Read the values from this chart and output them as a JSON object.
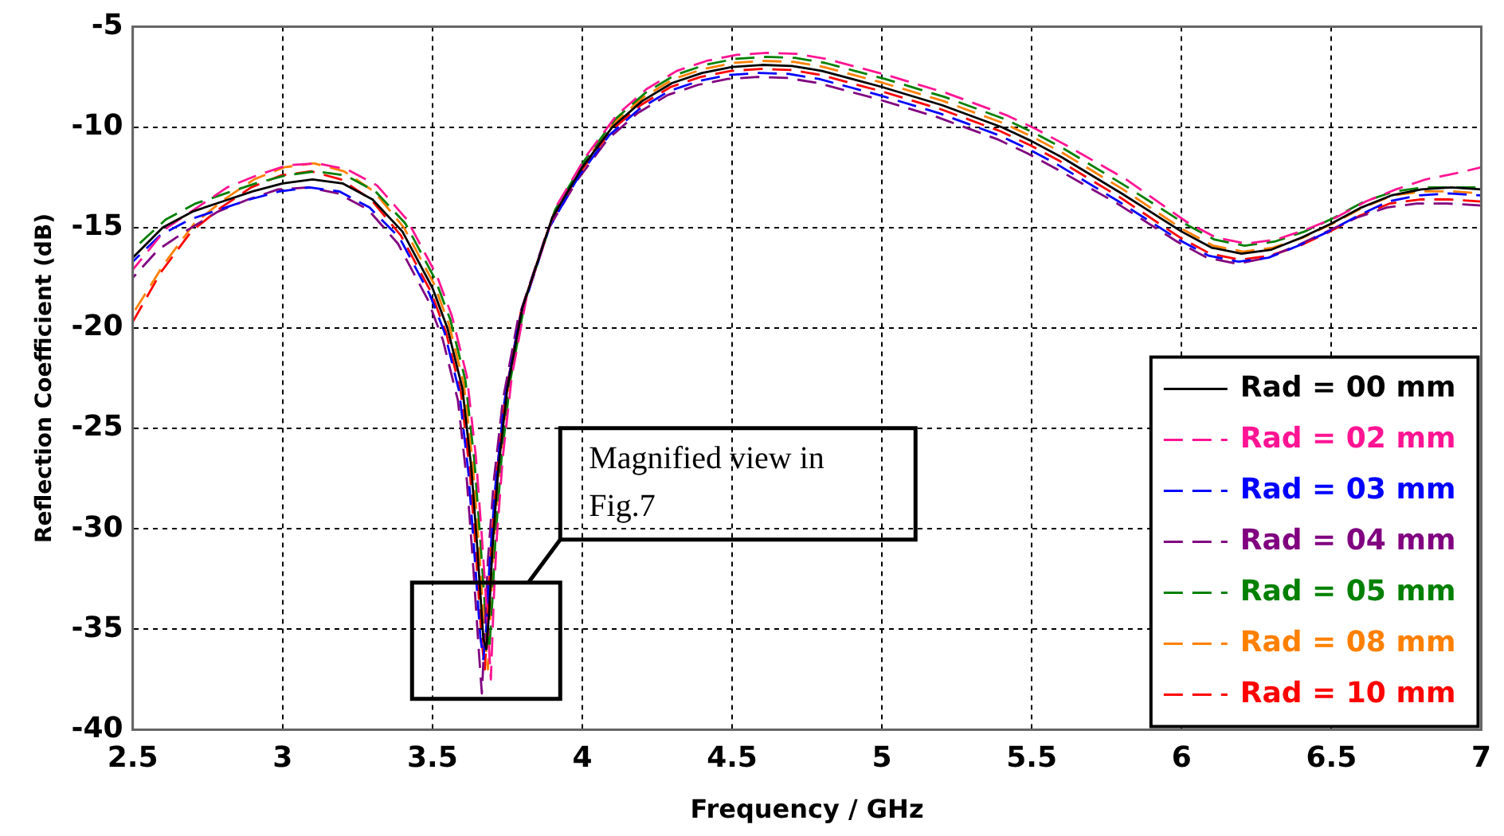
{
  "chart_data": {
    "type": "line",
    "xlabel": "Frequency / GHz",
    "ylabel": "Reflection Coefficient (dB)",
    "series": [
      {
        "name": "Rad = 00 mm",
        "color": "#000000",
        "line_style": "solid",
        "x": [
          2.5,
          2.6,
          2.7,
          2.8,
          2.9,
          3.0,
          3.1,
          3.2,
          3.3,
          3.4,
          3.5,
          3.55,
          3.6,
          3.63,
          3.65,
          3.67,
          3.68,
          3.69,
          3.7,
          3.72,
          3.75,
          3.8,
          3.9,
          4.0,
          4.1,
          4.2,
          4.3,
          4.4,
          4.5,
          4.6,
          4.7,
          4.8,
          4.9,
          5.0,
          5.2,
          5.4,
          5.5,
          5.6,
          5.8,
          6.0,
          6.1,
          6.2,
          6.3,
          6.4,
          6.5,
          6.6,
          6.7,
          6.8,
          6.9,
          7.0
        ],
        "values": [
          -16.5,
          -15,
          -14.2,
          -13.7,
          -13.2,
          -12.8,
          -12.6,
          -12.8,
          -13.6,
          -15.2,
          -18,
          -20,
          -23,
          -27,
          -31,
          -35.5,
          -36,
          -34,
          -31,
          -27,
          -23,
          -19,
          -14.5,
          -12,
          -10,
          -8.7,
          -7.8,
          -7.3,
          -7,
          -6.9,
          -6.95,
          -7.2,
          -7.6,
          -8,
          -8.9,
          -10,
          -10.7,
          -11.5,
          -13.3,
          -15.2,
          -16,
          -16.3,
          -16.1,
          -15.5,
          -14.8,
          -14,
          -13.4,
          -13.1,
          -13,
          -13.1
        ]
      },
      {
        "name": "Rad = 02 mm",
        "color": "#ff1493",
        "line_style": "dashed",
        "x": [
          2.5,
          2.615,
          2.715,
          2.815,
          2.915,
          3.015,
          3.115,
          3.215,
          3.315,
          3.415,
          3.515,
          3.565,
          3.615,
          3.645,
          3.665,
          3.685,
          3.695,
          3.705,
          3.715,
          3.735,
          3.765,
          3.815,
          3.915,
          4.015,
          4.115,
          4.215,
          4.315,
          4.415,
          4.515,
          4.615,
          4.715,
          4.815,
          4.915,
          5.015,
          5.215,
          5.415,
          5.515,
          5.615,
          5.815,
          6.015,
          6.115,
          6.215,
          6.315,
          6.415,
          6.515,
          6.615,
          6.715,
          6.815,
          6.915,
          7.0
        ],
        "values": [
          -17.1,
          -15,
          -14,
          -13,
          -12.4,
          -11.9,
          -11.8,
          -12.1,
          -12.9,
          -14.6,
          -17.4,
          -19.4,
          -22.4,
          -26.4,
          -30.4,
          -34.9,
          -37.5,
          -33.4,
          -30.4,
          -26.4,
          -22.4,
          -18.4,
          -13.9,
          -11.4,
          -9.4,
          -8.1,
          -7.2,
          -6.7,
          -6.4,
          -6.3,
          -6.35,
          -6.6,
          -7,
          -7.4,
          -8.3,
          -9.4,
          -10.1,
          -10.9,
          -12.6,
          -14.7,
          -15.5,
          -15.8,
          -15.6,
          -15.1,
          -14.5,
          -13.7,
          -13.1,
          -12.6,
          -12.3,
          -12
        ]
      },
      {
        "name": "Rad = 03 mm",
        "color": "#0000ff",
        "line_style": "dashed",
        "x": [
          2.5,
          2.59,
          2.69,
          2.79,
          2.89,
          2.99,
          3.09,
          3.19,
          3.29,
          3.39,
          3.49,
          3.54,
          3.59,
          3.62,
          3.64,
          3.66,
          3.67,
          3.68,
          3.69,
          3.71,
          3.74,
          3.79,
          3.89,
          3.99,
          4.09,
          4.19,
          4.29,
          4.39,
          4.49,
          4.59,
          4.69,
          4.79,
          4.89,
          4.99,
          5.19,
          5.39,
          5.49,
          5.59,
          5.79,
          5.99,
          6.09,
          6.19,
          6.29,
          6.39,
          6.49,
          6.59,
          6.69,
          6.79,
          6.89,
          7.0
        ],
        "values": [
          -16.7,
          -15.4,
          -14.6,
          -14.1,
          -13.6,
          -13.2,
          -13,
          -13.2,
          -14,
          -15.5,
          -18.3,
          -20.2,
          -23.2,
          -27.2,
          -31.2,
          -35.4,
          -36.5,
          -34.9,
          -31.9,
          -27.9,
          -23.7,
          -19.6,
          -15,
          -12.4,
          -10.4,
          -9.1,
          -8.2,
          -7.7,
          -7.4,
          -7.3,
          -7.35,
          -7.6,
          -8,
          -8.4,
          -9.3,
          -10.4,
          -11.1,
          -11.9,
          -13.7,
          -15.6,
          -16.4,
          -16.7,
          -16.5,
          -15.9,
          -15.2,
          -14.4,
          -13.7,
          -13.4,
          -13.3,
          -13.4
        ]
      },
      {
        "name": "Rad = 04 mm",
        "color": "#800080",
        "line_style": "dashed",
        "x": [
          2.5,
          2.585,
          2.685,
          2.785,
          2.885,
          2.985,
          3.085,
          3.185,
          3.285,
          3.385,
          3.485,
          3.535,
          3.585,
          3.615,
          3.635,
          3.655,
          3.665,
          3.675,
          3.685,
          3.705,
          3.735,
          3.785,
          3.885,
          3.985,
          4.085,
          4.185,
          4.285,
          4.385,
          4.485,
          4.585,
          4.685,
          4.785,
          4.885,
          4.985,
          5.185,
          5.385,
          5.485,
          5.585,
          5.785,
          5.985,
          6.085,
          6.185,
          6.285,
          6.385,
          6.485,
          6.585,
          6.685,
          6.785,
          6.885,
          7.0
        ],
        "values": [
          -17.5,
          -16.1,
          -15.1,
          -14.2,
          -13.6,
          -13.1,
          -13,
          -13.3,
          -14.1,
          -15.8,
          -18.6,
          -20.6,
          -23.6,
          -27.6,
          -31.6,
          -36.1,
          -38.2,
          -35.1,
          -31.6,
          -27.6,
          -23.6,
          -19.6,
          -15.1,
          -12.6,
          -10.6,
          -9.3,
          -8.4,
          -7.9,
          -7.6,
          -7.5,
          -7.55,
          -7.8,
          -8.2,
          -8.6,
          -9.5,
          -10.6,
          -11.3,
          -12.1,
          -13.8,
          -15.7,
          -16.5,
          -16.8,
          -16.5,
          -15.9,
          -15.2,
          -14.5,
          -14,
          -13.8,
          -13.8,
          -13.9
        ]
      },
      {
        "name": "Rad = 05 mm",
        "color": "#008000",
        "line_style": "dashed",
        "x": [
          2.5,
          2.61,
          2.71,
          2.81,
          2.91,
          3.01,
          3.11,
          3.21,
          3.31,
          3.41,
          3.51,
          3.56,
          3.61,
          3.64,
          3.66,
          3.68,
          3.69,
          3.7,
          3.71,
          3.73,
          3.76,
          3.81,
          3.91,
          4.01,
          4.11,
          4.21,
          4.31,
          4.41,
          4.51,
          4.61,
          4.71,
          4.81,
          4.91,
          5.01,
          5.21,
          5.41,
          5.51,
          5.61,
          5.81,
          6.01,
          6.11,
          6.21,
          6.31,
          6.41,
          6.51,
          6.61,
          6.71,
          6.81,
          6.91,
          7.0
        ],
        "values": [
          -16.1,
          -14.6,
          -13.8,
          -13.3,
          -12.8,
          -12.4,
          -12.2,
          -12.4,
          -13.2,
          -14.8,
          -17.6,
          -19.6,
          -22.6,
          -26.6,
          -30.6,
          -34.9,
          -36,
          -33.6,
          -30.6,
          -26.6,
          -22.6,
          -18.6,
          -14.1,
          -11.6,
          -9.6,
          -8.3,
          -7.4,
          -6.9,
          -6.6,
          -6.5,
          -6.55,
          -6.8,
          -7.2,
          -7.6,
          -8.5,
          -9.6,
          -10.3,
          -11.1,
          -12.9,
          -14.8,
          -15.6,
          -15.9,
          -15.7,
          -15.2,
          -14.5,
          -13.7,
          -13.2,
          -13,
          -13,
          -13
        ]
      },
      {
        "name": "Rad = 08 mm",
        "color": "#ff8000",
        "line_style": "dashed",
        "x": [
          2.5,
          2.605,
          2.705,
          2.805,
          2.905,
          3.005,
          3.105,
          3.205,
          3.305,
          3.405,
          3.505,
          3.555,
          3.605,
          3.635,
          3.655,
          3.675,
          3.685,
          3.695,
          3.705,
          3.725,
          3.755,
          3.805,
          3.905,
          4.005,
          4.105,
          4.205,
          4.305,
          4.405,
          4.505,
          4.605,
          4.705,
          4.805,
          4.905,
          5.005,
          5.205,
          5.405,
          5.505,
          5.605,
          5.805,
          6.005,
          6.105,
          6.205,
          6.305,
          6.405,
          6.505,
          6.605,
          6.705,
          6.805,
          6.905,
          7.0
        ],
        "values": [
          -19.3,
          -16.8,
          -14.8,
          -13.6,
          -12.6,
          -12,
          -11.8,
          -12.2,
          -13.2,
          -15,
          -17.8,
          -19.8,
          -22.8,
          -26.8,
          -30.8,
          -35.3,
          -37,
          -33.8,
          -30.8,
          -26.8,
          -22.8,
          -18.8,
          -14.3,
          -11.8,
          -9.8,
          -8.5,
          -7.6,
          -7.1,
          -6.8,
          -6.7,
          -6.75,
          -7,
          -7.4,
          -7.8,
          -8.7,
          -9.8,
          -10.5,
          -11.3,
          -13.1,
          -15.1,
          -15.9,
          -16.2,
          -16,
          -15.5,
          -14.8,
          -14,
          -13.4,
          -13.2,
          -13.2,
          -13.3
        ]
      },
      {
        "name": "Rad = 10 mm",
        "color": "#ff0000",
        "line_style": "dashed",
        "x": [
          2.5,
          2.595,
          2.695,
          2.795,
          2.895,
          2.995,
          3.095,
          3.195,
          3.295,
          3.395,
          3.495,
          3.545,
          3.595,
          3.625,
          3.645,
          3.665,
          3.675,
          3.685,
          3.695,
          3.715,
          3.745,
          3.795,
          3.895,
          3.995,
          4.095,
          4.195,
          4.295,
          4.395,
          4.495,
          4.595,
          4.695,
          4.795,
          4.895,
          4.995,
          5.195,
          5.395,
          5.495,
          5.595,
          5.795,
          5.995,
          6.095,
          6.195,
          6.295,
          6.395,
          6.495,
          6.595,
          6.695,
          6.795,
          6.895,
          7.0
        ],
        "values": [
          -19.7,
          -17.2,
          -15.2,
          -14,
          -13,
          -12.4,
          -12.2,
          -12.6,
          -13.6,
          -15.4,
          -18.2,
          -20.2,
          -23.2,
          -27.2,
          -31.2,
          -35.7,
          -37,
          -34.2,
          -31.2,
          -27.2,
          -23.2,
          -19.2,
          -14.7,
          -12.2,
          -10.2,
          -8.9,
          -8,
          -7.5,
          -7.2,
          -7.1,
          -7.15,
          -7.4,
          -7.8,
          -8.2,
          -9.1,
          -10.2,
          -10.9,
          -11.7,
          -13.5,
          -15.5,
          -16.3,
          -16.6,
          -16.4,
          -15.9,
          -15.2,
          -14.4,
          -13.8,
          -13.6,
          -13.6,
          -13.7
        ]
      }
    ],
    "xlim": [
      2.5,
      7
    ],
    "xticks": [
      2.5,
      3,
      3.5,
      4,
      4.5,
      5,
      5.5,
      6,
      6.5,
      7
    ],
    "ylim": [
      -40,
      -5
    ],
    "yticks": [
      -40,
      -35,
      -30,
      -25,
      -20,
      -15,
      -10,
      -5
    ],
    "grid": true,
    "legend": "bottom right",
    "marker": "none",
    "annotations": [
      "Magnified view in Fig.7"
    ]
  }
}
